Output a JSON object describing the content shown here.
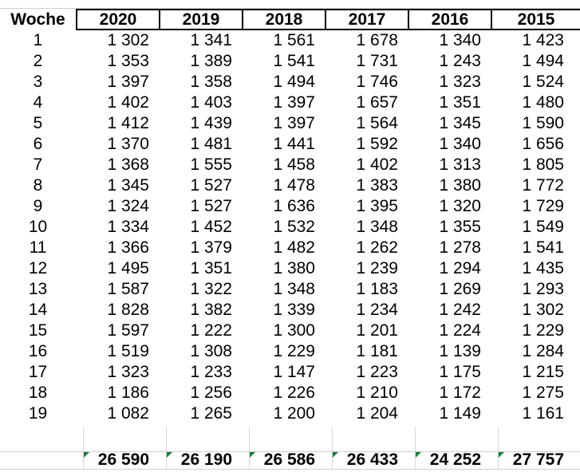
{
  "table": {
    "corner_header": "Woche",
    "year_headers": [
      "2020",
      "2019",
      "2018",
      "2017",
      "2016",
      "2015"
    ],
    "rows": [
      {
        "week": "1",
        "values": [
          "1 302",
          "1 341",
          "1 561",
          "1 678",
          "1 340",
          "1 423"
        ]
      },
      {
        "week": "2",
        "values": [
          "1 353",
          "1 389",
          "1 541",
          "1 731",
          "1 243",
          "1 494"
        ]
      },
      {
        "week": "3",
        "values": [
          "1 397",
          "1 358",
          "1 494",
          "1 746",
          "1 323",
          "1 524"
        ]
      },
      {
        "week": "4",
        "values": [
          "1 402",
          "1 403",
          "1 397",
          "1 657",
          "1 351",
          "1 480"
        ]
      },
      {
        "week": "5",
        "values": [
          "1 412",
          "1 439",
          "1 397",
          "1 564",
          "1 345",
          "1 590"
        ]
      },
      {
        "week": "6",
        "values": [
          "1 370",
          "1 481",
          "1 441",
          "1 592",
          "1 340",
          "1 656"
        ]
      },
      {
        "week": "7",
        "values": [
          "1 368",
          "1 555",
          "1 458",
          "1 402",
          "1 313",
          "1 805"
        ]
      },
      {
        "week": "8",
        "values": [
          "1 345",
          "1 527",
          "1 478",
          "1 383",
          "1 380",
          "1 772"
        ]
      },
      {
        "week": "9",
        "values": [
          "1 324",
          "1 527",
          "1 636",
          "1 395",
          "1 320",
          "1 729"
        ]
      },
      {
        "week": "10",
        "values": [
          "1 334",
          "1 452",
          "1 532",
          "1 348",
          "1 355",
          "1 549"
        ]
      },
      {
        "week": "11",
        "values": [
          "1 366",
          "1 379",
          "1 482",
          "1 262",
          "1 278",
          "1 541"
        ]
      },
      {
        "week": "12",
        "values": [
          "1 495",
          "1 351",
          "1 380",
          "1 239",
          "1 294",
          "1 435"
        ]
      },
      {
        "week": "13",
        "values": [
          "1 587",
          "1 322",
          "1 348",
          "1 183",
          "1 269",
          "1 293"
        ]
      },
      {
        "week": "14",
        "values": [
          "1 828",
          "1 382",
          "1 339",
          "1 234",
          "1 242",
          "1 302"
        ]
      },
      {
        "week": "15",
        "values": [
          "1 597",
          "1 222",
          "1 300",
          "1 201",
          "1 224",
          "1 229"
        ]
      },
      {
        "week": "16",
        "values": [
          "1 519",
          "1 308",
          "1 229",
          "1 181",
          "1 139",
          "1 284"
        ]
      },
      {
        "week": "17",
        "values": [
          "1 323",
          "1 233",
          "1 147",
          "1 223",
          "1 175",
          "1 215"
        ]
      },
      {
        "week": "18",
        "values": [
          "1 186",
          "1 256",
          "1 226",
          "1 210",
          "1 172",
          "1 275"
        ]
      },
      {
        "week": "19",
        "values": [
          "1 082",
          "1 265",
          "1 200",
          "1 204",
          "1 149",
          "1 161"
        ]
      }
    ],
    "totals": [
      "26 590",
      "26 190",
      "26 586",
      "26 433",
      "24 252",
      "27 757"
    ]
  },
  "icons": {
    "totals_flag": "cell-error-indicator-triangle"
  },
  "colors": {
    "text": "#000000",
    "header_border": "#000000",
    "gridline": "#d6d6d6",
    "flag_green": "#148230",
    "background": "#ffffff"
  }
}
